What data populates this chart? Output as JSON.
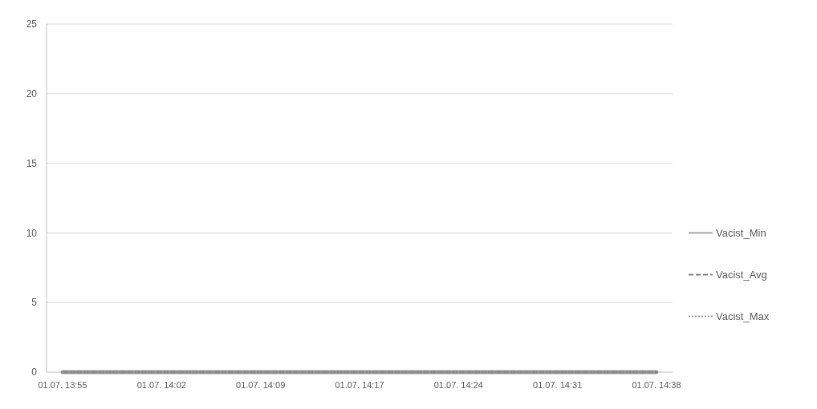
{
  "chart_data": {
    "type": "line",
    "categories": [
      "01.07. 13:55",
      "01.07. 14:02",
      "01.07. 14:09",
      "01.07. 14:17",
      "01.07. 14:24",
      "01.07. 14:31",
      "01.07. 14:38"
    ],
    "series": [
      {
        "name": "Vacist_Min",
        "color": "#a6a6a6",
        "line_style": "solid",
        "values": [
          0,
          0,
          0,
          0,
          0,
          0,
          0
        ]
      },
      {
        "name": "Vacist_Avg",
        "color": "#7f7f7f",
        "line_style": "dashed",
        "values": [
          0,
          0,
          0,
          0,
          0,
          0,
          0
        ]
      },
      {
        "name": "Vacist_Max",
        "color": "#999999",
        "line_style": "dotted",
        "values": [
          0,
          0,
          0,
          0,
          0,
          0,
          0
        ]
      }
    ],
    "ylim": [
      0,
      25
    ],
    "yticks": [
      0,
      5,
      10,
      15,
      20,
      25
    ],
    "grid": "y",
    "legend": "right",
    "marker": "none"
  }
}
